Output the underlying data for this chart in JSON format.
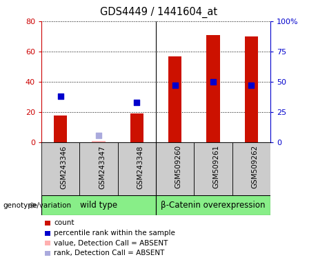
{
  "title": "GDS4449 / 1441604_at",
  "categories": [
    "GSM243346",
    "GSM243347",
    "GSM243348",
    "GSM509260",
    "GSM509261",
    "GSM509262"
  ],
  "red_bars": [
    18,
    1,
    19,
    57,
    71,
    70
  ],
  "blue_squares": [
    38,
    null,
    33,
    47,
    50,
    47
  ],
  "absent_red_bars": [
    null,
    1,
    null,
    null,
    null,
    null
  ],
  "absent_blue_squares": [
    null,
    6,
    null,
    null,
    null,
    null
  ],
  "ylim_left": [
    0,
    80
  ],
  "ylim_right": [
    0,
    100
  ],
  "yticks_left": [
    0,
    20,
    40,
    60,
    80
  ],
  "yticks_right": [
    0,
    25,
    50,
    75,
    100
  ],
  "ytick_labels_left": [
    "0",
    "20",
    "40",
    "60",
    "80"
  ],
  "ytick_labels_right": [
    "0",
    "25",
    "50",
    "75",
    "100%"
  ],
  "left_axis_color": "#cc0000",
  "right_axis_color": "#0000cc",
  "bar_color": "#cc1100",
  "absent_bar_color": "#ffb0b0",
  "square_color": "#0000cc",
  "absent_square_color": "#aaaadd",
  "grid_color": "#000000",
  "plot_bg": "#ffffff",
  "label_area_bg": "#cccccc",
  "wildtype_bg": "#88ee88",
  "bcatenin_bg": "#88ee88",
  "wildtype_label": "wild type",
  "bcatenin_label": "β-Catenin overexpression",
  "genotype_label": "genotype/variation",
  "legend_items": [
    {
      "color": "#cc1100",
      "label": "count"
    },
    {
      "color": "#0000cc",
      "label": "percentile rank within the sample"
    },
    {
      "color": "#ffb0b0",
      "label": "value, Detection Call = ABSENT"
    },
    {
      "color": "#aaaadd",
      "label": "rank, Detection Call = ABSENT"
    }
  ],
  "bar_width": 0.35,
  "square_size": 40
}
